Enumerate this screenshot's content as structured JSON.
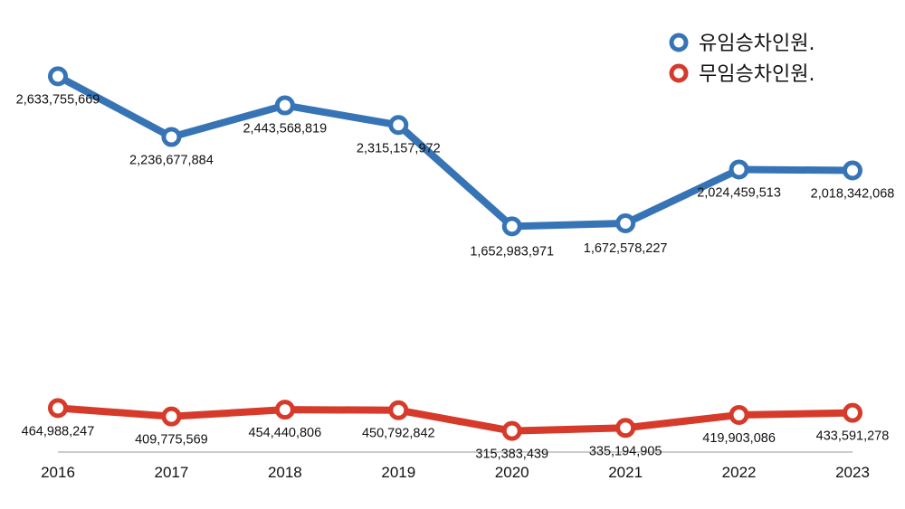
{
  "chart_data": {
    "type": "line",
    "categories": [
      "2016",
      "2017",
      "2018",
      "2019",
      "2020",
      "2021",
      "2022",
      "2023"
    ],
    "series": [
      {
        "name": "유임승차인원.",
        "color": "#3774b6",
        "values": [
          2633755669,
          2236677884,
          2443568819,
          2315157972,
          1652983971,
          1672578227,
          2024459513,
          2018342068
        ],
        "labels": [
          "2,633,755,669",
          "2,236,677,884",
          "2,443,568,819",
          "2,315,157,972",
          "1,652,983,971",
          "1,672,578,227",
          "2,024,459,513",
          "2,018,342,068"
        ]
      },
      {
        "name": "무임승차인원.",
        "color": "#d63a2a",
        "values": [
          464988247,
          409775569,
          454440806,
          450792842,
          315383439,
          335194905,
          419903086,
          433591278
        ],
        "labels": [
          "464,988,247",
          "409,775,569",
          "454,440,806",
          "450,792,842",
          "315,383,439",
          "335,194,905",
          "419,903,086",
          "433,591,278"
        ]
      }
    ],
    "title": "",
    "xlabel": "",
    "ylabel": "",
    "ylim": [
      0,
      3000000000
    ],
    "grid": false,
    "legend_position": "top-right"
  }
}
